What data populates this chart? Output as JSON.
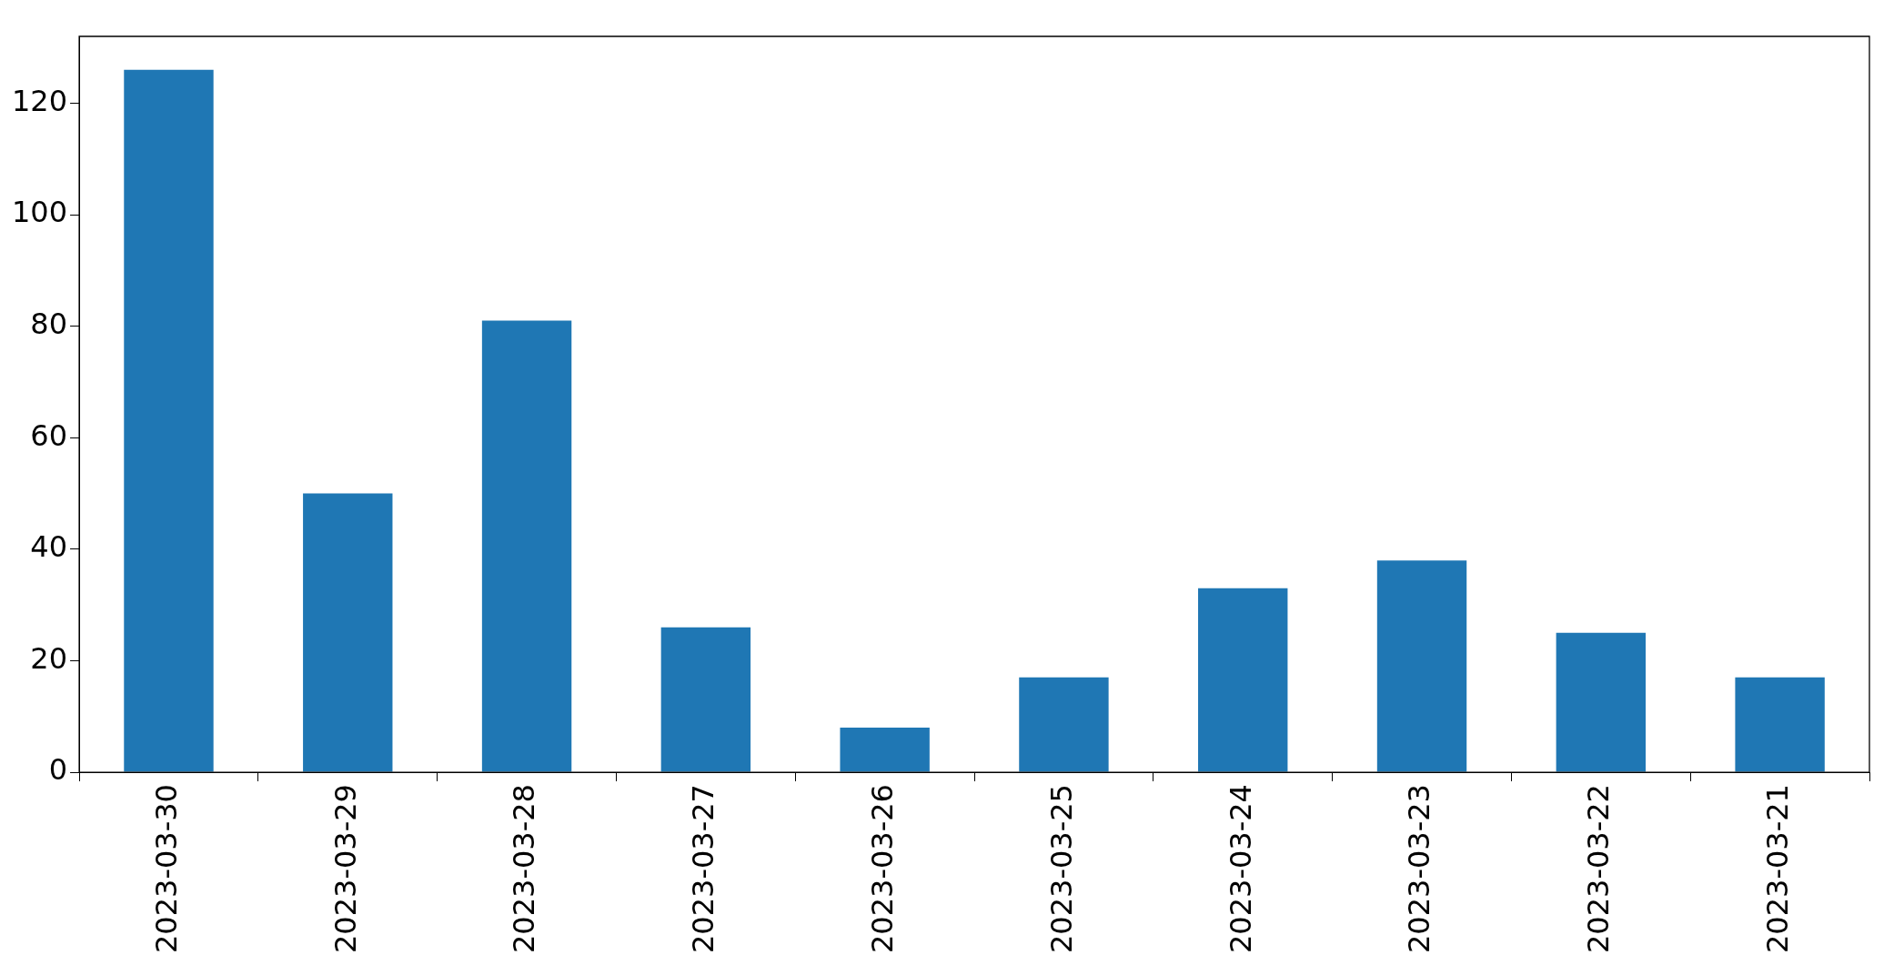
{
  "chart_data": {
    "type": "bar",
    "categories": [
      "2023-03-30",
      "2023-03-29",
      "2023-03-28",
      "2023-03-27",
      "2023-03-26",
      "2023-03-25",
      "2023-03-24",
      "2023-03-23",
      "2023-03-22",
      "2023-03-21"
    ],
    "values": [
      126,
      50,
      81,
      26,
      8,
      17,
      33,
      38,
      25,
      17
    ],
    "color": "#1f77b4",
    "ylim": [
      0,
      132
    ],
    "yticks": [
      0,
      20,
      40,
      60,
      80,
      100,
      120
    ],
    "grid": false,
    "legend": false
  }
}
